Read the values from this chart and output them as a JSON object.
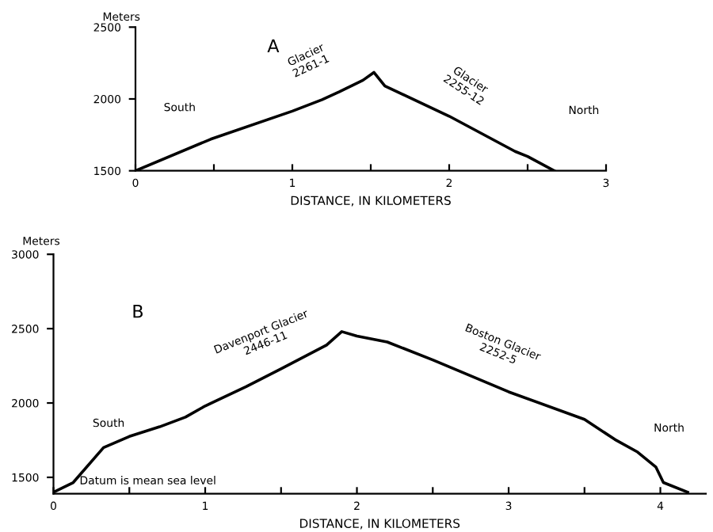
{
  "chart_data": [
    {
      "type": "line",
      "ylabel": "Meters",
      "xlabel": "DISTANCE, IN KILOMETERS",
      "x": [
        0,
        0.48,
        1.0,
        1.19,
        1.3,
        1.45,
        1.52,
        1.59,
        2.0,
        2.42,
        2.5,
        2.67
      ],
      "series": [
        {
          "color": "#000000",
          "values": [
            1500,
            1720,
            1915,
            1995,
            2050,
            2130,
            2185,
            2090,
            1880,
            1635,
            1600,
            1500
          ]
        }
      ],
      "xlim": [
        0,
        3
      ],
      "ylim": [
        1500,
        2500
      ],
      "xticks": [
        0,
        {
          "value": 0.5,
          "label": null
        },
        1,
        {
          "value": 1.5,
          "label": null
        },
        2,
        {
          "value": 2.5,
          "label": null
        },
        3
      ],
      "yticks": [
        1500,
        2000,
        2500
      ],
      "annotations": [
        "A",
        "South",
        "North",
        {
          "text": "Glacier\n2261-1",
          "x": 1.3,
          "y": 2050
        },
        {
          "text": "Glacier\n2255-12",
          "x": 2.0,
          "y": 1880
        }
      ]
    },
    {
      "type": "line",
      "ylabel": "Meters",
      "xlabel": "DISTANCE, IN KILOMETERS",
      "x": [
        0,
        0.13,
        0.33,
        0.5,
        0.7,
        0.87,
        1.0,
        1.27,
        1.5,
        1.8,
        1.9,
        2.0,
        2.2,
        2.5,
        3.0,
        3.5,
        3.7,
        3.85,
        3.97,
        4.02,
        4.18
      ],
      "series": [
        {
          "color": "#000000",
          "values": [
            1400,
            1465,
            1700,
            1775,
            1840,
            1905,
            1980,
            2110,
            2230,
            2390,
            2480,
            2450,
            2410,
            2290,
            2075,
            1890,
            1755,
            1670,
            1570,
            1465,
            1400
          ]
        }
      ],
      "xlim": [
        0,
        4.3
      ],
      "ylim": [
        1390,
        3000
      ],
      "xticks": [
        0,
        {
          "value": 0.5,
          "label": null
        },
        1,
        {
          "value": 1.5,
          "label": null
        },
        2,
        {
          "value": 2.5,
          "label": null
        },
        3,
        {
          "value": 3.5,
          "label": null
        },
        4
      ],
      "yticks": [
        1500,
        2000,
        2500,
        3000
      ],
      "annotations": [
        "B",
        "South",
        "North",
        "Datum is mean sea level",
        {
          "text": "Davenport Glacier\n2446-11",
          "x": 1.5,
          "y": 2230
        },
        {
          "text": "Boston Glacier\n2252-5",
          "x": 2.8,
          "y": 2160
        }
      ]
    }
  ]
}
